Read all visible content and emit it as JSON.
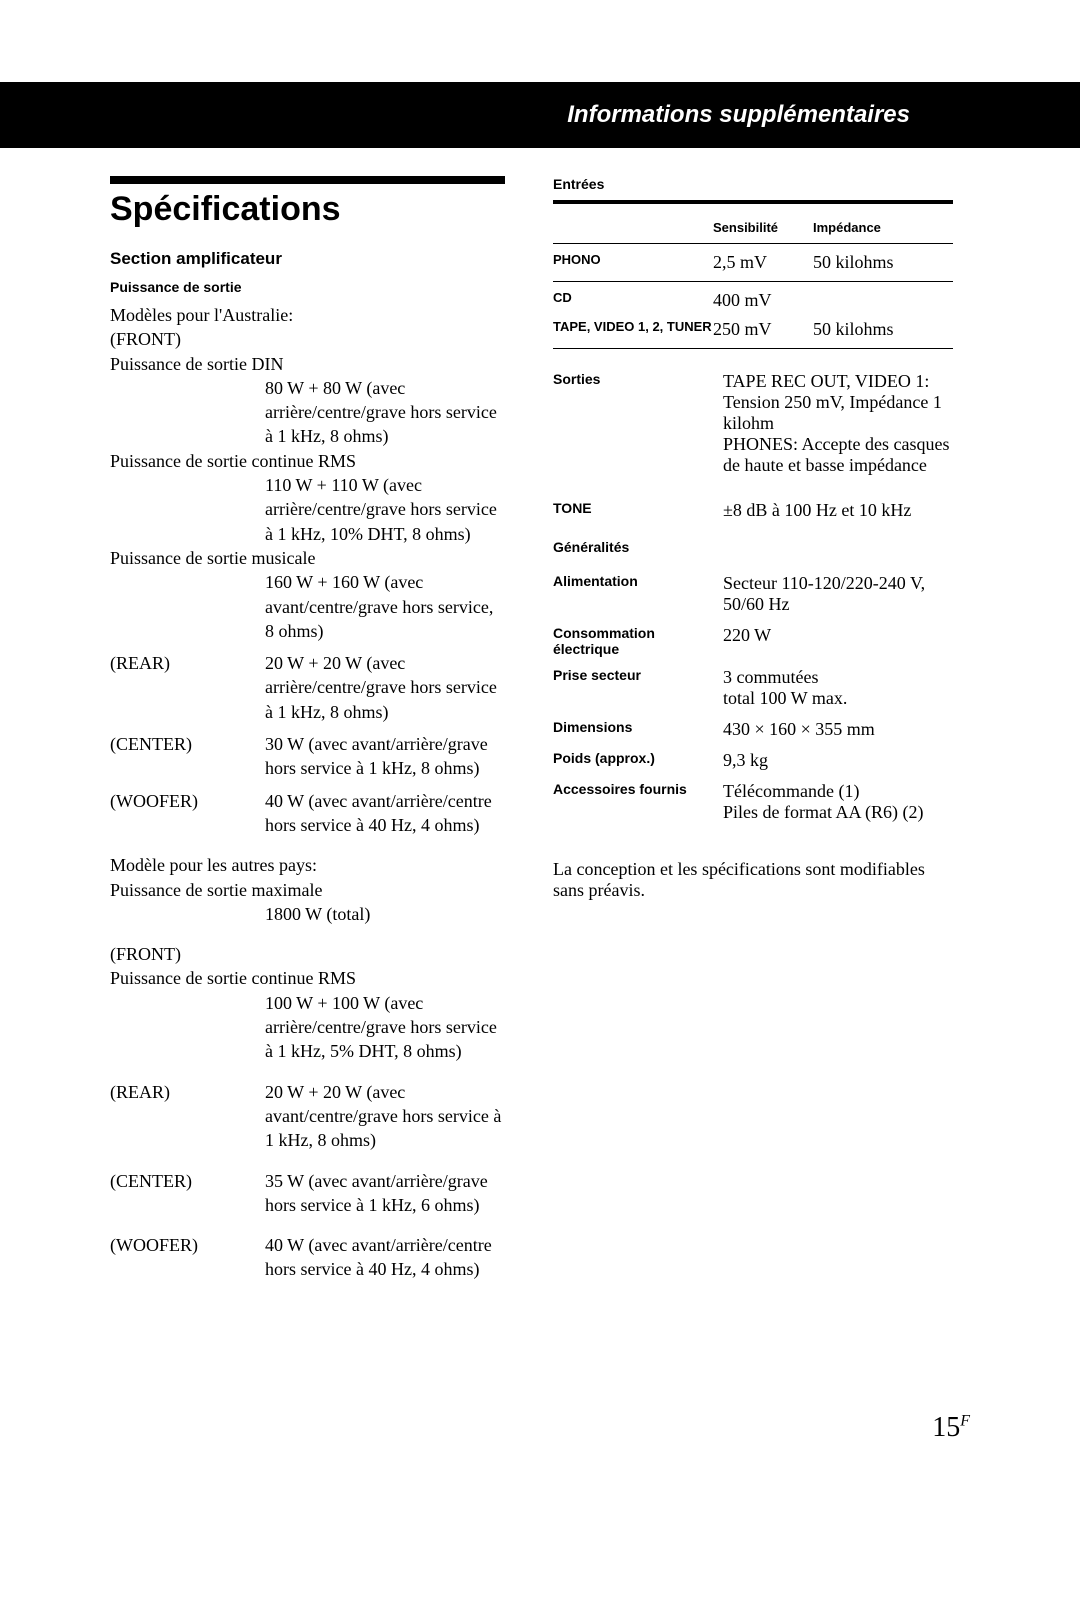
{
  "header": {
    "breadcrumb": "Informations supplémentaires"
  },
  "title": "Spécifications",
  "amp": {
    "section": "Section amplificateur",
    "power_out": "Puissance de sortie",
    "aus_models": "Modèles pour l'Australie:",
    "front": "(FRONT)",
    "din_label": "Puissance de sortie DIN",
    "din_value": "80 W + 80 W (avec arrière/centre/grave hors service à 1 kHz, 8 ohms)",
    "rms_label": "Puissance de sortie continue RMS",
    "rms_value": "110 W + 110 W (avec arrière/centre/grave hors service à 1 kHz, 10% DHT, 8 ohms)",
    "music_label": "Puissance de sortie musicale",
    "music_value": "160 W + 160 W (avec avant/centre/grave hors service, 8 ohms)",
    "rear": "(REAR)",
    "rear_value": "20 W + 20 W (avec arrière/centre/grave hors service à 1 kHz, 8 ohms)",
    "center": "(CENTER)",
    "center_value": "30 W (avec avant/arrière/grave hors service à 1 kHz, 8 ohms)",
    "woofer": "(WOOFER)",
    "woofer_value": "40 W (avec avant/arrière/centre hors service à 40 Hz, 4 ohms)",
    "other_models": "Modèle pour les autres pays:",
    "max_label": "Puissance de sortie maximale",
    "max_value": "1800 W (total)",
    "front2": "(FRONT)",
    "rms2_label": "Puissance de sortie continue RMS",
    "rms2_value": "100 W + 100 W (avec arrière/centre/grave hors service à 1 kHz, 5% DHT, 8 ohms)",
    "rear2": "(REAR)",
    "rear2_value": "20 W + 20 W (avec avant/centre/grave hors service à 1 kHz, 8 ohms)",
    "center2": "(CENTER)",
    "center2_value": "35 W (avec avant/arrière/grave hors service à 1 kHz, 6 ohms)",
    "woofer2": "(WOOFER)",
    "woofer2_value": "40 W (avec avant/arrière/centre hors service à 40 Hz, 4 ohms)"
  },
  "inputs": {
    "title": "Entrées",
    "col_sens": "Sensibilité",
    "col_imp": "Impédance",
    "rows": [
      {
        "label": "PHONO",
        "sens": "2,5 mV",
        "imp": "50 kilohms"
      },
      {
        "label": "CD",
        "sens": "400 mV",
        "imp": ""
      },
      {
        "label": "TAPE, VIDEO 1, 2, TUNER",
        "sens": "250 mV",
        "imp": "50 kilohms"
      }
    ]
  },
  "outputs": {
    "label": "Sorties",
    "value": "TAPE REC OUT, VIDEO 1: Tension 250 mV, Impédance 1 kilohm\nPHONES: Accepte des casques de haute et basse impédance"
  },
  "tone": {
    "label": "TONE",
    "value": "±8 dB à 100 Hz et 10 kHz"
  },
  "general": {
    "title": "Généralités",
    "rows": [
      {
        "k": "Alimentation",
        "v": "Secteur 110-120/220-240 V, 50/60 Hz"
      },
      {
        "k": "Consommation électrique",
        "v": "220 W"
      },
      {
        "k": "Prise secteur",
        "v": "3 commutées\ntotal 100 W max."
      },
      {
        "k": "Dimensions",
        "v": "430 × 160 × 355 mm"
      },
      {
        "k": "Poids (approx.)",
        "v": "9,3 kg"
      },
      {
        "k": "Accessoires fournis",
        "v": "Télécommande (1)\nPiles de format AA (R6) (2)"
      }
    ]
  },
  "notice": "La conception et les spécifications sont modifiables sans préavis.",
  "page": {
    "num": "15",
    "sup": "F"
  }
}
